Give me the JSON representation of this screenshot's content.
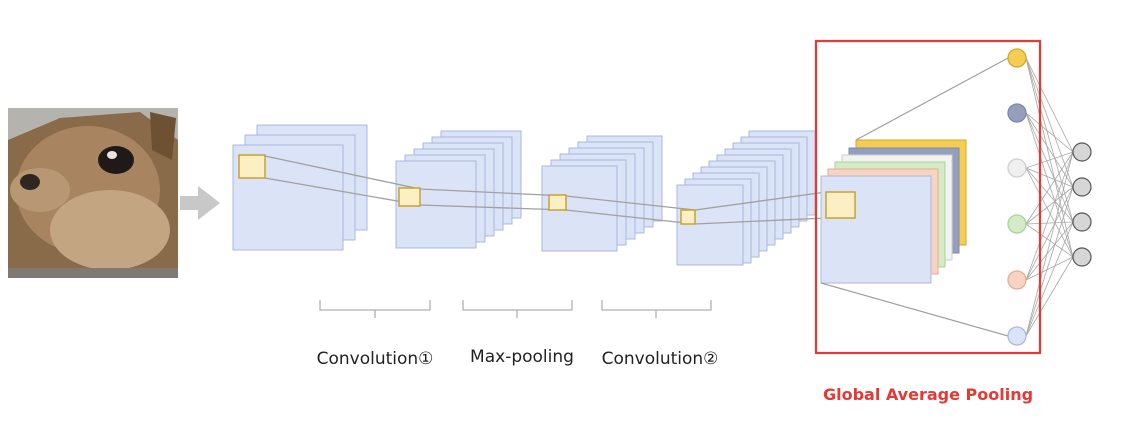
{
  "labels": {
    "conv1": "Convolution①",
    "maxpool": "Max-pooling",
    "conv2": "Convolution②",
    "gap": "Global Average Pooling"
  },
  "image": {
    "name": "squirrel-photo"
  },
  "colors": {
    "map_fill": "#dbe3f6",
    "map_stroke": "#a9badc",
    "patch_fill": "#fcefc4",
    "patch_stroke": "#c9a232",
    "gap_box": "#e53935",
    "connector": "#9a9a9a",
    "arrow": "#c8c8c8"
  },
  "gap_channels": [
    "#f5cd52",
    "#94a0bb",
    "#c7ccd6",
    "#d3ebc6",
    "#f6d4c1",
    "#dbe3f6"
  ],
  "gap_neurons": [
    "#f5cd52",
    "#94a0bb",
    "#efefef",
    "#d3ebc6",
    "#f6d4c1",
    "#dbe3f6"
  ],
  "output_neurons": [
    "#d6d6d6",
    "#d6d6d6",
    "#d6d6d6",
    "#d6d6d6"
  ]
}
